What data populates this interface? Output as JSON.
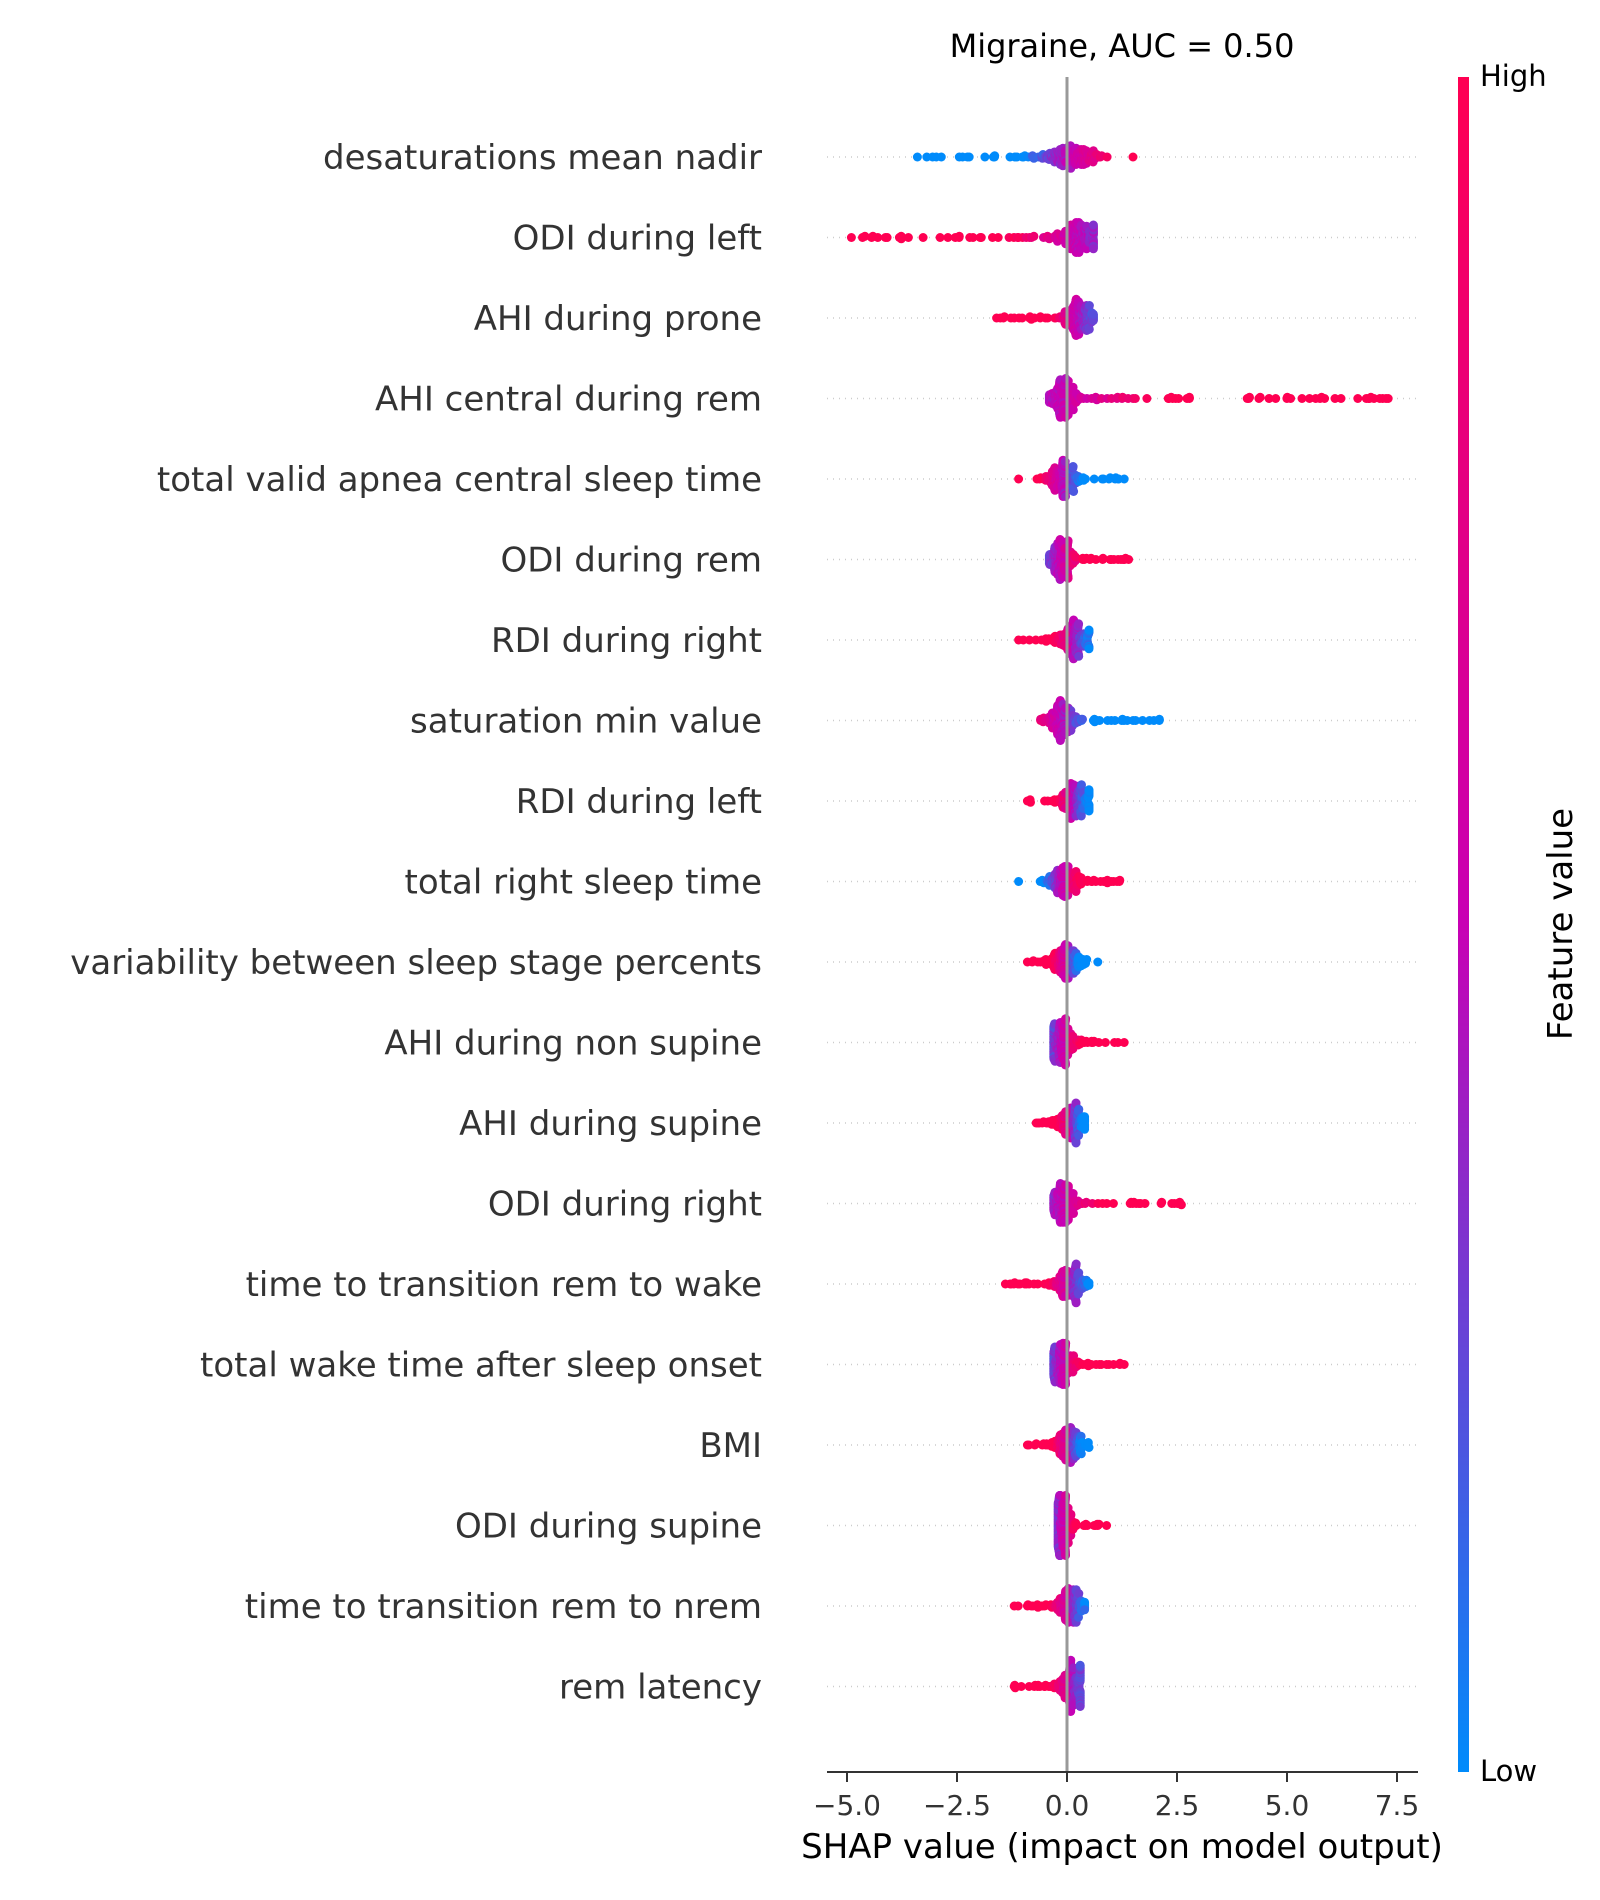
{
  "chart_data": {
    "type": "scatter",
    "subtype": "shap-beeswarm",
    "title": "Migraine, AUC =  0.50",
    "xlabel": "SHAP value (impact on model output)",
    "xlim": [
      -5.5,
      7.9
    ],
    "xticks": [
      -5.0,
      -2.5,
      0.0,
      2.5,
      5.0,
      7.5
    ],
    "xtick_labels": [
      "−5.0",
      "−2.5",
      "0.0",
      "2.5",
      "5.0",
      "7.5"
    ],
    "grid": false,
    "colorbar": {
      "label": "Feature value",
      "high_label": "High",
      "low_label": "Low",
      "high_color": "#ff0052",
      "mid_color": "#c800b4",
      "low_color": "#008bfb"
    },
    "zero_line_color": "#999999",
    "features": [
      {
        "name": "desaturations mean nadir",
        "min": -3.4,
        "max": 1.5,
        "center": 0.1,
        "spread": 0.65,
        "low_side": "neg",
        "tail": "neg"
      },
      {
        "name": "ODI during left",
        "min": -4.9,
        "max": 0.6,
        "center": 0.25,
        "spread": 0.45,
        "low_side": "pos",
        "tail": "neg"
      },
      {
        "name": "AHI during prone",
        "min": -1.6,
        "max": 0.6,
        "center": 0.25,
        "spread": 0.4,
        "low_side": "pos",
        "tail": "neg"
      },
      {
        "name": "AHI central during rem",
        "min": -0.4,
        "max": 7.3,
        "center": -0.1,
        "spread": 0.3,
        "low_side": "neg",
        "tail": "pos"
      },
      {
        "name": "total valid apnea central sleep time",
        "min": -1.1,
        "max": 1.3,
        "center": -0.1,
        "spread": 0.4,
        "low_side": "pos",
        "tail": "pos"
      },
      {
        "name": "ODI during rem",
        "min": -0.4,
        "max": 1.4,
        "center": -0.15,
        "spread": 0.3,
        "low_side": "neg",
        "tail": "pos"
      },
      {
        "name": "RDI during right",
        "min": -1.1,
        "max": 0.5,
        "center": 0.15,
        "spread": 0.4,
        "low_side": "pos",
        "tail": "neg"
      },
      {
        "name": "saturation min value",
        "min": -0.6,
        "max": 2.1,
        "center": -0.15,
        "spread": 0.35,
        "low_side": "pos",
        "tail": "pos"
      },
      {
        "name": "RDI during left",
        "min": -0.9,
        "max": 0.5,
        "center": 0.15,
        "spread": 0.4,
        "low_side": "pos",
        "tail": "neg"
      },
      {
        "name": "total right sleep time",
        "min": -1.1,
        "max": 1.2,
        "center": -0.1,
        "spread": 0.4,
        "low_side": "neg",
        "tail": "pos"
      },
      {
        "name": "variability between sleep stage percents",
        "min": -0.9,
        "max": 0.7,
        "center": 0.0,
        "spread": 0.4,
        "low_side": "pos",
        "tail": "neg"
      },
      {
        "name": "AHI during non supine",
        "min": -0.3,
        "max": 1.3,
        "center": -0.1,
        "spread": 0.3,
        "low_side": "neg",
        "tail": "pos"
      },
      {
        "name": "AHI during supine",
        "min": -0.7,
        "max": 0.4,
        "center": 0.1,
        "spread": 0.35,
        "low_side": "pos",
        "tail": "neg"
      },
      {
        "name": "ODI during right",
        "min": -0.3,
        "max": 2.6,
        "center": -0.1,
        "spread": 0.25,
        "low_side": "neg",
        "tail": "pos"
      },
      {
        "name": "time to transition rem to wake",
        "min": -1.4,
        "max": 0.5,
        "center": 0.05,
        "spread": 0.4,
        "low_side": "pos",
        "tail": "neg"
      },
      {
        "name": "total wake time after sleep onset",
        "min": -0.3,
        "max": 1.3,
        "center": -0.1,
        "spread": 0.3,
        "low_side": "neg",
        "tail": "pos"
      },
      {
        "name": "BMI",
        "min": -0.9,
        "max": 0.5,
        "center": 0.05,
        "spread": 0.35,
        "low_side": "pos",
        "tail": "neg"
      },
      {
        "name": "ODI during supine",
        "min": -0.2,
        "max": 0.9,
        "center": -0.1,
        "spread": 0.2,
        "low_side": "neg",
        "tail": "pos"
      },
      {
        "name": "time to transition rem to nrem",
        "min": -1.2,
        "max": 0.4,
        "center": 0.05,
        "spread": 0.35,
        "low_side": "pos",
        "tail": "neg"
      },
      {
        "name": "rem latency",
        "min": -1.2,
        "max": 0.3,
        "center": 0.1,
        "spread": 0.3,
        "low_side": "pos",
        "tail": "neg"
      }
    ]
  }
}
